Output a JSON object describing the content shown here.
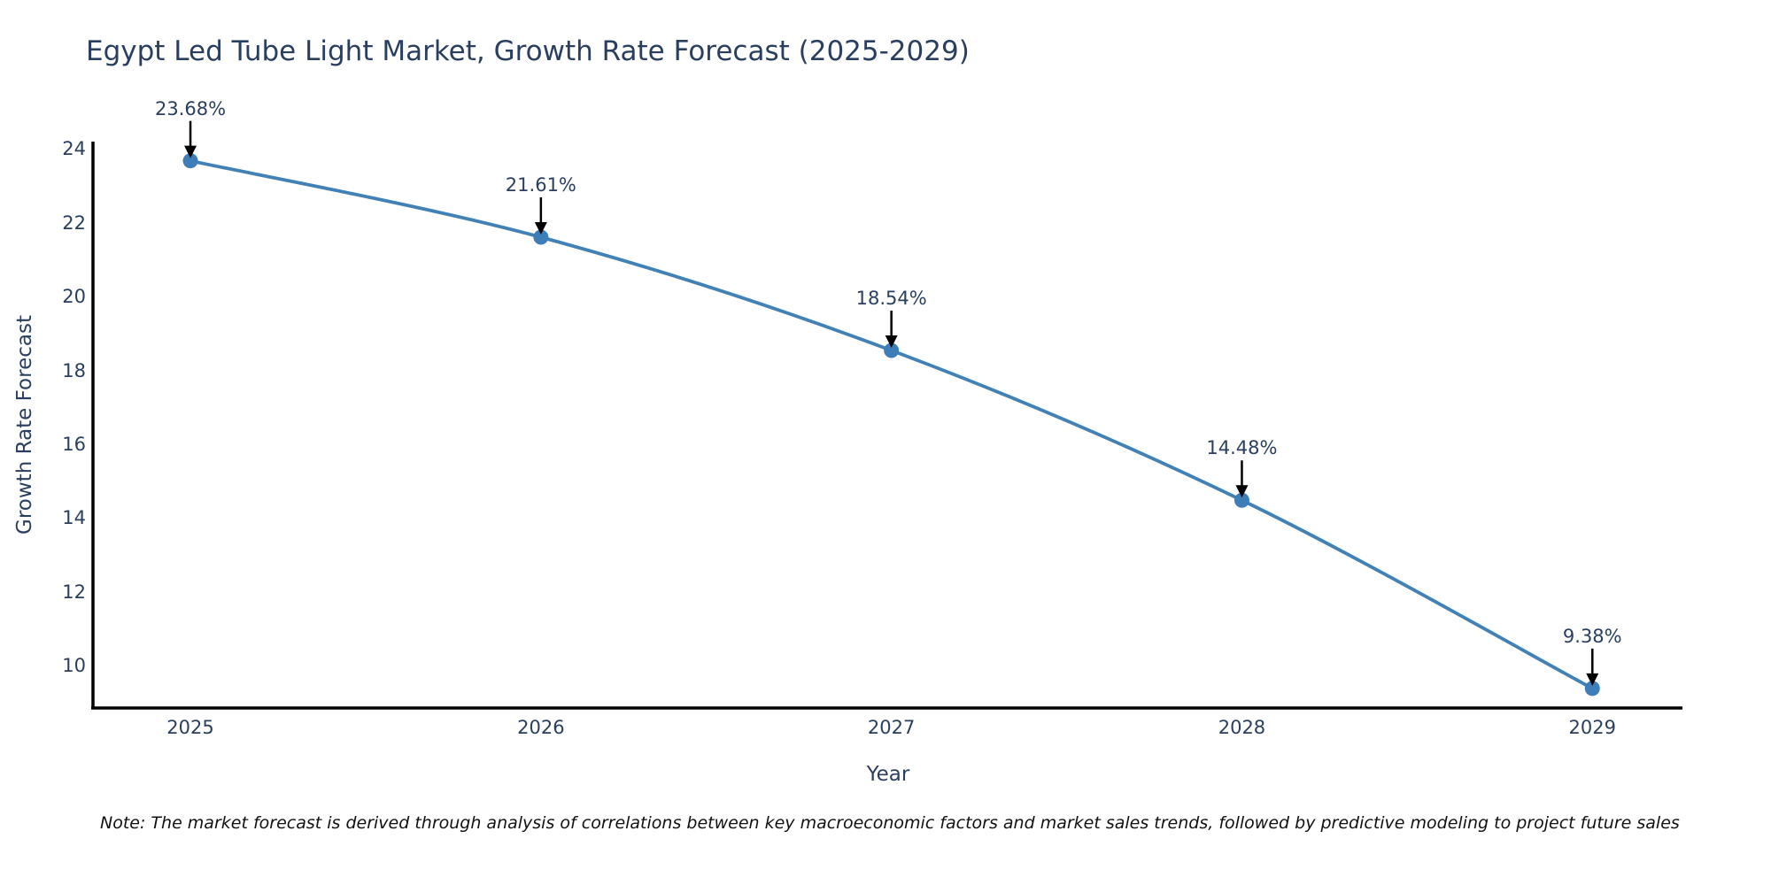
{
  "chart_data": {
    "type": "line",
    "title": "Egypt Led Tube Light Market, Growth Rate Forecast (2025-2029)",
    "xlabel": "Year",
    "ylabel": "Growth Rate Forecast",
    "x": [
      2025,
      2026,
      2027,
      2028,
      2029
    ],
    "values": [
      23.68,
      21.61,
      18.54,
      14.48,
      9.38
    ],
    "point_labels": [
      "23.68%",
      "21.61%",
      "18.54%",
      "14.48%",
      "9.38%"
    ],
    "x_tick_labels": [
      "2025",
      "2026",
      "2027",
      "2028",
      "2029"
    ],
    "y_tick_values": [
      24,
      22,
      20,
      18,
      16,
      14,
      12,
      10
    ],
    "x_range": [
      2024.722,
      2029.257
    ],
    "y_range": [
      8.85,
      24.2
    ],
    "line_shape": "spline",
    "grid": false,
    "legend_position": "none",
    "colors": {
      "line": "#4181b6",
      "marker": "#3d7db8",
      "axis": "#000000",
      "text": "#2a3f5f",
      "annotation_arrow": "#000000",
      "background": "#ffffff"
    }
  },
  "note": {
    "text": "Note: The market forecast is derived through analysis of correlations between key macroeconomic factors and market sales trends, followed by predictive modeling to project future sales"
  }
}
